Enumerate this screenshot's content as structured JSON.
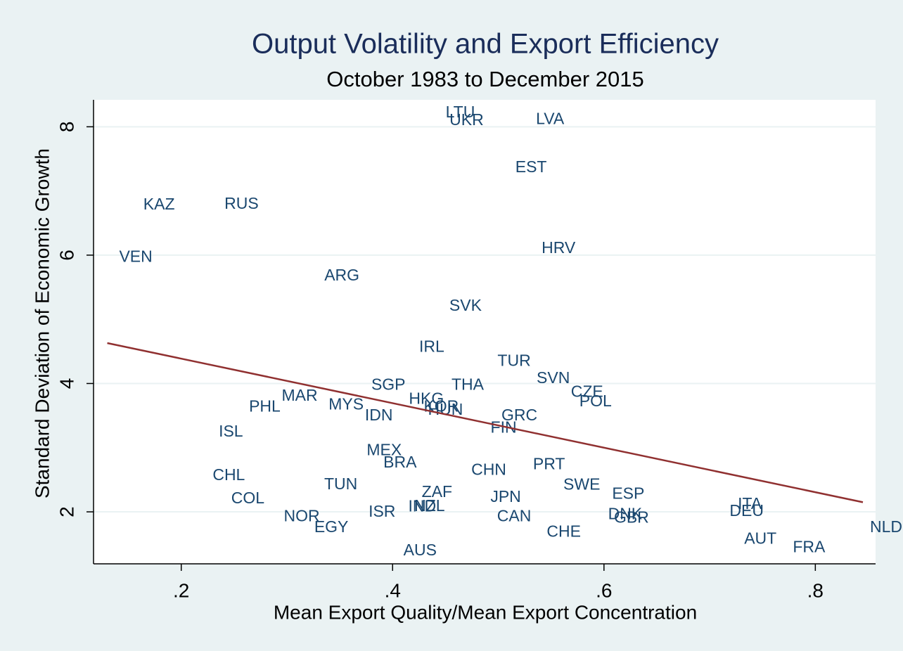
{
  "chart_data": {
    "type": "scatter",
    "title": "Output Volatility and Export Efficiency",
    "subtitle": "October 1983 to December 2015",
    "xlabel": "Mean Export Quality/Mean Export Concentration",
    "ylabel": "Standard Deviation of Economic Growth",
    "xlim": [
      0.117,
      0.857
    ],
    "ylim": [
      1.19,
      8.42
    ],
    "xticks": [
      {
        "value": 0.2,
        "label": ".2"
      },
      {
        "value": 0.4,
        "label": ".4"
      },
      {
        "value": 0.6,
        "label": ".6"
      },
      {
        "value": 0.8,
        "label": ".8"
      }
    ],
    "yticks": [
      2,
      4,
      6,
      8
    ],
    "grid": true,
    "color": "#1a476f",
    "labels": [
      "LTU",
      "UKR",
      "LVA",
      "EST",
      "KAZ",
      "RUS",
      "VEN",
      "HRV",
      "ARG",
      "SVK",
      "IRL",
      "TUR",
      "SVN",
      "THA",
      "SGP",
      "CZE",
      "POL",
      "MAR",
      "HKG",
      "KOR",
      "HUN",
      "MYS",
      "PHL",
      "IDN",
      "GRC",
      "FIN",
      "ISL",
      "MEX",
      "BRA",
      "CHN",
      "PRT",
      "CHL",
      "TUN",
      "SWE",
      "ZAF",
      "ESP",
      "JPN",
      "COL",
      "ITA",
      "DEU",
      "IND",
      "NZL",
      "ISR",
      "NOR",
      "DNK",
      "GBR",
      "CAN",
      "EGY",
      "CHE",
      "AUT",
      "FRA",
      "NLD",
      "AUS"
    ],
    "x": [
      0.464,
      0.47,
      0.549,
      0.531,
      0.179,
      0.257,
      0.157,
      0.557,
      0.352,
      0.469,
      0.437,
      0.515,
      0.552,
      0.471,
      0.396,
      0.584,
      0.592,
      0.312,
      0.432,
      0.446,
      0.45,
      0.356,
      0.279,
      0.387,
      0.52,
      0.505,
      0.247,
      0.392,
      0.407,
      0.491,
      0.548,
      0.245,
      0.351,
      0.579,
      0.442,
      0.623,
      0.507,
      0.263,
      0.738,
      0.735,
      0.428,
      0.435,
      0.39,
      0.314,
      0.62,
      0.626,
      0.515,
      0.342,
      0.562,
      0.748,
      0.794,
      0.867,
      0.426
    ],
    "values": [
      8.21,
      8.09,
      8.11,
      7.36,
      6.78,
      6.79,
      5.96,
      6.1,
      5.67,
      5.2,
      4.56,
      4.34,
      4.07,
      3.97,
      3.97,
      3.86,
      3.71,
      3.8,
      3.75,
      3.63,
      3.58,
      3.66,
      3.63,
      3.49,
      3.49,
      3.3,
      3.24,
      2.95,
      2.76,
      2.64,
      2.73,
      2.56,
      2.42,
      2.41,
      2.3,
      2.27,
      2.22,
      2.2,
      2.11,
      2.0,
      2.07,
      2.08,
      1.99,
      1.92,
      1.95,
      1.9,
      1.92,
      1.75,
      1.68,
      1.57,
      1.44,
      1.75,
      1.39
    ],
    "fit": {
      "x": [
        0.13,
        0.845
      ],
      "values": [
        4.63,
        2.15
      ],
      "color": "#903030"
    }
  }
}
